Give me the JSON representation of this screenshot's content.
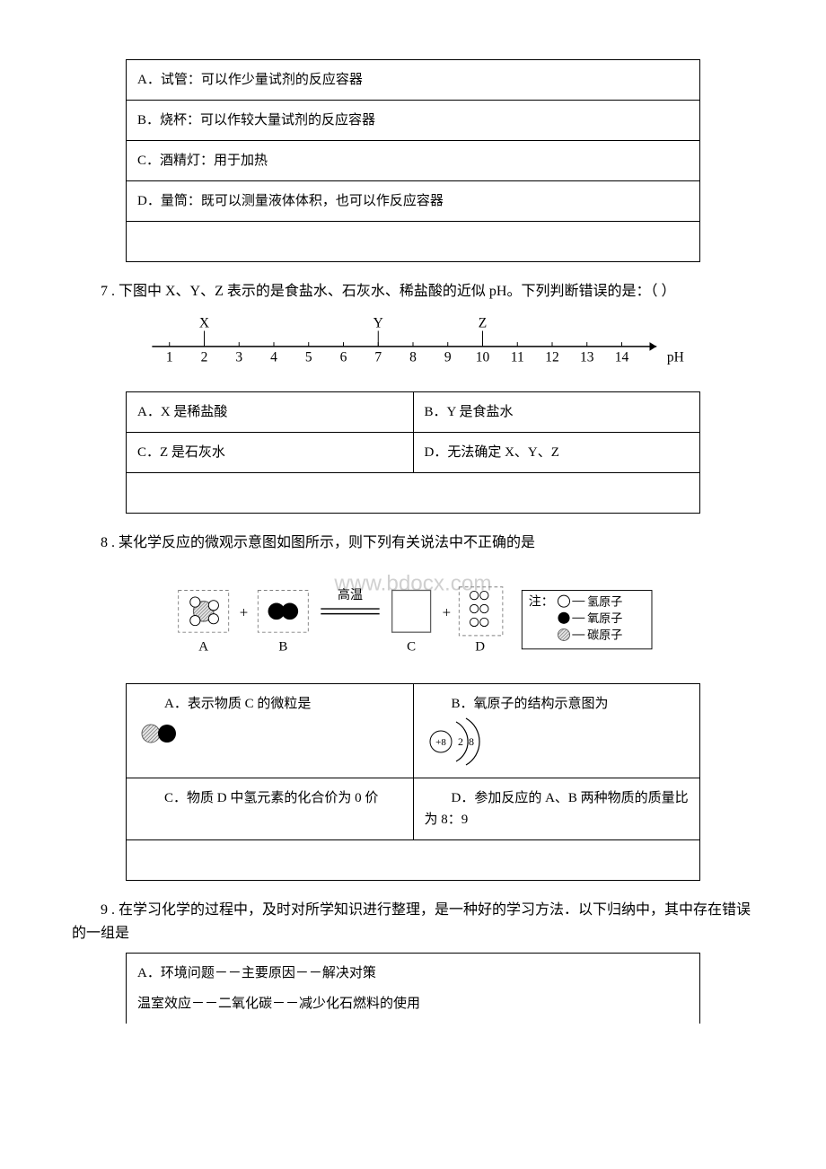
{
  "q6": {
    "opts": {
      "A": "A．试管：可以作少量试剂的反应容器",
      "B": "B．烧杯：可以作较大量试剂的反应容器",
      "C": "C．酒精灯：用于加热",
      "D": "D．量筒：既可以测量液体体积，也可以作反应容器"
    }
  },
  "q7": {
    "stem": "7 . 下图中 X、Y、Z 表示的是食盐水、石灰水、稀盐酸的近似 pH。下列判断错误的是：（ ）",
    "axis": {
      "labels": [
        "X",
        "Y",
        "Z"
      ],
      "positions_x": [
        2,
        7,
        10
      ],
      "ticks": [
        1,
        2,
        3,
        4,
        5,
        6,
        7,
        8,
        9,
        10,
        11,
        12,
        13,
        14
      ],
      "axis_label": "pH",
      "font_size": 16,
      "axis_color": "#000000"
    },
    "opts": {
      "A": "A．X 是稀盐酸",
      "B": "B．Y 是食盐水",
      "C": "C．Z 是石灰水",
      "D": "D．无法确定 X、Y、Z"
    }
  },
  "q8": {
    "stem": "8 . 某化学反应的微观示意图如图所示，则下列有关说法中不正确的是",
    "fig": {
      "watermark": "www.bdocx.com",
      "watermark_color": "#d0d0d0",
      "arrow_label": "高温",
      "plus": "+",
      "letters": [
        "A",
        "B",
        "C",
        "D"
      ],
      "legend_title": "注：",
      "legend": [
        {
          "label": "氢原子",
          "fill": "#ffffff",
          "stroke": "#000000",
          "dash": false,
          "hatch": false
        },
        {
          "label": "氧原子",
          "fill": "#000000",
          "stroke": "#000000",
          "dash": false,
          "hatch": false
        },
        {
          "label": "碳原子",
          "fill": "#ffffff",
          "stroke": "#606060",
          "dash": false,
          "hatch": true
        }
      ],
      "dashes": [
        true,
        true,
        true,
        true
      ],
      "colors": {
        "box": "#606060",
        "dash": "#808080",
        "text": "#000000"
      }
    },
    "opts": {
      "A": "A．表示物质 C 的微粒是",
      "B": "B．氧原子的结构示意图为",
      "B_nums": [
        "+8",
        "2",
        "8"
      ],
      "C": "C．物质 D 中氢元素的化合价为 0 价",
      "D": "D．参加反应的 A、B 两种物质的质量比为 8：9"
    }
  },
  "q9": {
    "stem": "9 . 在学习化学的过程中，及时对所学知识进行整理，是一种好的学习方法．以下归纳中，其中存在错误的一组是",
    "optA_line1": "A．环境问题－－主要原因－－解决对策",
    "optA_line2": "温室效应－－二氧化碳－－减少化石燃料的使用"
  }
}
